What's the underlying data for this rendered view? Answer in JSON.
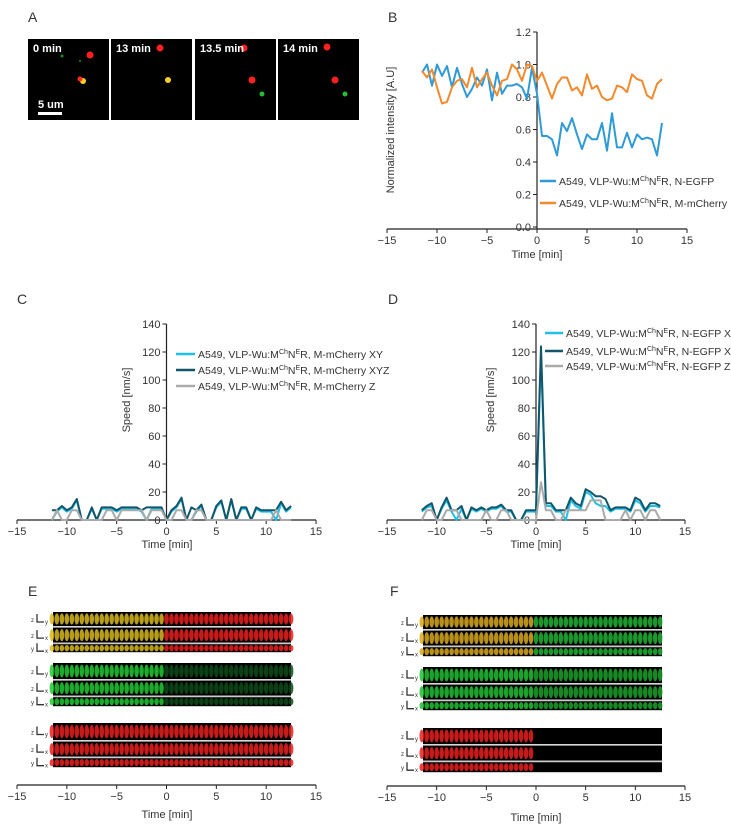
{
  "panels": {
    "a": "A",
    "b": "B",
    "c": "C",
    "d": "D",
    "e": "E",
    "f": "F"
  },
  "panel_a": {
    "frames": [
      "0 min",
      "13 min",
      "13.5 min",
      "14 min"
    ],
    "scale_bar": "5 um"
  },
  "chart_data": [
    {
      "id": "B",
      "type": "line",
      "title": "",
      "xlabel": "Time [min]",
      "ylabel": "Normalized intensity [A.U]",
      "xlim": [
        -15,
        15
      ],
      "ylim": [
        0,
        1.2
      ],
      "xticks": [
        -15,
        -10,
        -5,
        0,
        5,
        10,
        15
      ],
      "yticks": [
        0,
        0.2,
        0.4,
        0.6,
        0.8,
        1.0,
        1.2
      ],
      "ytick_decimals": 1,
      "legend_position": "lower-right",
      "x": [
        -11.5,
        -11,
        -10.5,
        -10,
        -9.5,
        -9,
        -8.5,
        -8,
        -7.5,
        -7,
        -6.5,
        -6,
        -5.5,
        -5,
        -4.5,
        -4,
        -3.5,
        -3,
        -2.5,
        -2,
        -1.5,
        -1,
        -0.5,
        0,
        0.5,
        1,
        1.5,
        2,
        2.5,
        3,
        3.5,
        4,
        4.5,
        5,
        5.5,
        6,
        6.5,
        7,
        7.5,
        8,
        8.5,
        9,
        9.5,
        10,
        10.5,
        11,
        11.5,
        12,
        12.5
      ],
      "series": [
        {
          "name": {
            "pre": "A549, VLP-Wu:M",
            "sup1": "Ch",
            "mid": "N",
            "sup2": "E",
            "post": "R, N-EGFP"
          },
          "color": "#2e9ad6",
          "values": [
            0.95,
            1.0,
            0.87,
            1.0,
            0.93,
            0.99,
            0.86,
            0.98,
            0.88,
            0.8,
            0.85,
            0.92,
            0.87,
            0.97,
            0.78,
            0.95,
            0.82,
            0.87,
            0.87,
            0.88,
            0.86,
            0.79,
            0.98,
            0.82,
            0.56,
            0.56,
            0.54,
            0.44,
            0.64,
            0.59,
            0.67,
            0.57,
            0.48,
            0.57,
            0.54,
            0.54,
            0.64,
            0.47,
            0.7,
            0.49,
            0.49,
            0.58,
            0.49,
            0.57,
            0.54,
            0.55,
            0.54,
            0.44,
            0.64
          ]
        },
        {
          "name": {
            "pre": "A549, VLP-Wu:M",
            "sup1": "Ch",
            "mid": "N",
            "sup2": "E",
            "post": "R, M-mCherry"
          },
          "color": "#f28a2e",
          "values": [
            0.96,
            0.92,
            0.97,
            0.86,
            0.76,
            0.77,
            0.86,
            0.9,
            0.91,
            0.86,
            0.98,
            0.86,
            0.91,
            0.95,
            0.87,
            0.81,
            0.9,
            0.91,
            1.0,
            0.97,
            0.9,
            1.0,
            0.99,
            0.9,
            0.95,
            0.87,
            0.79,
            0.88,
            0.92,
            0.92,
            0.84,
            0.86,
            0.81,
            0.94,
            0.85,
            0.87,
            0.8,
            0.78,
            0.79,
            0.87,
            0.86,
            0.83,
            0.94,
            0.91,
            0.9,
            0.81,
            0.79,
            0.88,
            0.91
          ]
        }
      ]
    },
    {
      "id": "C",
      "type": "line",
      "title": "",
      "xlabel": "Time [min]",
      "ylabel": "Speed [nm/s]",
      "xlim": [
        -15,
        15
      ],
      "ylim": [
        0,
        140
      ],
      "xticks": [
        -15,
        -10,
        -5,
        0,
        5,
        10,
        15
      ],
      "yticks": [
        0,
        20,
        40,
        60,
        80,
        100,
        120,
        140
      ],
      "ytick_decimals": 0,
      "legend_position": "top-right",
      "x": [
        -11.5,
        -11,
        -10.5,
        -10,
        -9.5,
        -9,
        -8.5,
        -8,
        -7.5,
        -7,
        -6.5,
        -6,
        -5.5,
        -5,
        -4.5,
        -4,
        -3.5,
        -3,
        -2.5,
        -2,
        -1.5,
        -1,
        -0.5,
        0,
        0.5,
        1,
        1.5,
        2,
        2.5,
        3,
        3.5,
        4,
        4.5,
        5,
        5.5,
        6,
        6.5,
        7,
        7.5,
        8,
        8.5,
        9,
        9.5,
        10,
        10.5,
        11,
        11.5,
        12,
        12.5
      ],
      "series": [
        {
          "name": {
            "pre": "A549, VLP-Wu:M",
            "sup1": "Ch",
            "mid": "N",
            "sup2": "E",
            "post": "R, M-mCherry XY"
          },
          "color": "#1fbfe8",
          "values": [
            0,
            6,
            9,
            6,
            8,
            14,
            0,
            0,
            8,
            0,
            8,
            8,
            8,
            6,
            8,
            8,
            8,
            8,
            6,
            0,
            8,
            8,
            8,
            0,
            6,
            9,
            15,
            0,
            0,
            6,
            10,
            0,
            0,
            9,
            13,
            0,
            14,
            0,
            8,
            8,
            0,
            8,
            6,
            6,
            6,
            0,
            12,
            6,
            9
          ]
        },
        {
          "name": {
            "pre": "A549, VLP-Wu:M",
            "sup1": "Ch",
            "mid": "N",
            "sup2": "E",
            "post": "R, M-mCherry XYZ"
          },
          "color": "#12566b",
          "values": [
            7,
            7,
            10,
            7,
            9,
            15,
            0,
            0,
            9,
            0,
            9,
            9,
            9,
            7,
            9,
            9,
            9,
            9,
            7,
            9,
            9,
            9,
            9,
            0,
            7,
            10,
            16,
            0,
            9,
            7,
            11,
            0,
            0,
            10,
            14,
            0,
            15,
            0,
            9,
            9,
            0,
            9,
            7,
            7,
            7,
            7,
            13,
            7,
            10
          ]
        },
        {
          "name": {
            "pre": "A549, VLP-Wu:M",
            "sup1": "Ch",
            "mid": "N",
            "sup2": "E",
            "post": "R, M-mCherry Z"
          },
          "color": "#aaaaaa",
          "values": [
            0,
            7,
            0,
            0,
            7,
            7,
            0,
            0,
            0,
            0,
            0,
            7,
            7,
            0,
            7,
            7,
            7,
            7,
            7,
            0,
            7,
            7,
            7,
            0,
            0,
            7,
            7,
            0,
            0,
            7,
            7,
            0,
            0,
            0,
            0,
            0,
            0,
            0,
            0,
            0,
            0,
            0,
            0,
            0,
            0,
            7,
            0,
            0,
            0
          ]
        }
      ]
    },
    {
      "id": "D",
      "type": "line",
      "title": "",
      "xlabel": "Time [min]",
      "ylabel": "Speed [nm/s]",
      "xlim": [
        -15,
        15
      ],
      "ylim": [
        0,
        140
      ],
      "xticks": [
        -15,
        -10,
        -5,
        0,
        5,
        10,
        15
      ],
      "yticks": [
        0,
        20,
        40,
        60,
        80,
        100,
        120,
        140
      ],
      "ytick_decimals": 0,
      "legend_position": "top-right",
      "x": [
        -11.5,
        -11,
        -10.5,
        -10,
        -9.5,
        -9,
        -8.5,
        -8,
        -7.5,
        -7,
        -6.5,
        -6,
        -5.5,
        -5,
        -4.5,
        -4,
        -3.5,
        -3,
        -2.5,
        -2,
        -1.5,
        -1,
        -0.5,
        0,
        0.5,
        1,
        1.5,
        2,
        2.5,
        3,
        3.5,
        4,
        4.5,
        5,
        5.5,
        6,
        6.5,
        7,
        7.5,
        8,
        8.5,
        9,
        9.5,
        10,
        10.5,
        11,
        11.5,
        12,
        12.5
      ],
      "series": [
        {
          "name": {
            "pre": "A549, VLP-Wu:M",
            "sup1": "Ch",
            "mid": "N",
            "sup2": "E",
            "post": "R, N-EGFP XY"
          },
          "color": "#1fbfe8",
          "values": [
            6,
            9,
            10,
            0,
            8,
            14,
            6,
            0,
            8,
            0,
            8,
            6,
            8,
            6,
            8,
            8,
            10,
            6,
            6,
            0,
            0,
            6,
            6,
            6,
            118,
            10,
            10,
            6,
            6,
            0,
            14,
            10,
            8,
            20,
            18,
            12,
            10,
            10,
            6,
            8,
            8,
            8,
            6,
            14,
            12,
            6,
            10,
            10,
            9
          ]
        },
        {
          "name": {
            "pre": "A549, VLP-Wu:M",
            "sup1": "Ch",
            "mid": "N",
            "sup2": "E",
            "post": "R, N-EGFP XYZ"
          },
          "color": "#12566b",
          "values": [
            7,
            10,
            12,
            0,
            9,
            16,
            7,
            7,
            10,
            0,
            9,
            7,
            9,
            7,
            9,
            9,
            11,
            7,
            7,
            0,
            0,
            7,
            7,
            7,
            124,
            12,
            12,
            7,
            7,
            7,
            16,
            12,
            10,
            22,
            20,
            17,
            17,
            15,
            7,
            9,
            9,
            9,
            7,
            16,
            14,
            7,
            12,
            12,
            10
          ]
        },
        {
          "name": {
            "pre": "A549, VLP-Wu:M",
            "sup1": "Ch",
            "mid": "N",
            "sup2": "E",
            "post": "R, N-EGFP Z"
          },
          "color": "#aaaaaa",
          "values": [
            0,
            7,
            7,
            0,
            0,
            7,
            7,
            7,
            0,
            0,
            0,
            0,
            0,
            7,
            0,
            0,
            7,
            7,
            0,
            0,
            0,
            0,
            0,
            0,
            27,
            7,
            7,
            0,
            0,
            7,
            7,
            7,
            7,
            7,
            14,
            14,
            14,
            0,
            0,
            0,
            0,
            7,
            0,
            7,
            7,
            0,
            7,
            7,
            0
          ]
        }
      ]
    }
  ],
  "kymographs": {
    "xlabel": "Time [min]",
    "xticks": [
      -15,
      -10,
      -5,
      0,
      5,
      10,
      15
    ],
    "strip_labels": [
      [
        "z",
        "y"
      ],
      [
        "z",
        "x"
      ],
      [
        "y",
        "x"
      ]
    ],
    "E": {
      "t_start": -11.5,
      "t_end": 12.5,
      "groups": [
        {
          "before": "#d8b820",
          "after": "#e82020"
        },
        {
          "before": "#22c835",
          "after": "#0d4a18"
        },
        {
          "before": "#e82020",
          "after": "#e82020"
        }
      ]
    },
    "F": {
      "t_start": -11.5,
      "t_end": 12.5,
      "groups": [
        {
          "before": "#d8a820",
          "after": "#22b035"
        },
        {
          "before": "#22c035",
          "after": "#1ca02c"
        },
        {
          "before": "#e82020",
          "after": null
        }
      ]
    }
  }
}
